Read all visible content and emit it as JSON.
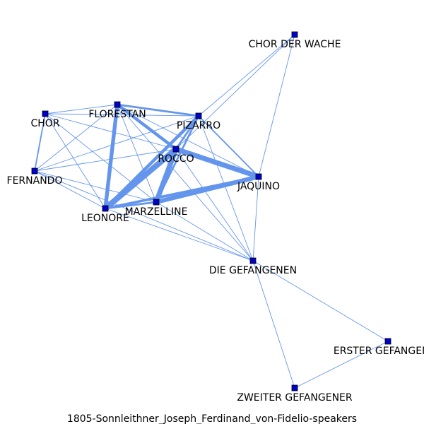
{
  "caption": "1805-Sonnleithner_Joseph_Ferdinand_von-Fidelio-speakers",
  "colors": {
    "edge": "#6495ED",
    "node_fill": "#0000CD",
    "node_stroke": "#000000",
    "label": "#000000"
  },
  "nodes": [
    {
      "id": "chor_der_wache",
      "label": "CHOR DER WACHE"
    },
    {
      "id": "florestan",
      "label": "FLORESTAN"
    },
    {
      "id": "chor",
      "label": "CHOR"
    },
    {
      "id": "pizarro",
      "label": "PIZARRO"
    },
    {
      "id": "rocco",
      "label": "ROCCO"
    },
    {
      "id": "fernando",
      "label": "FERNANDO"
    },
    {
      "id": "jaquino",
      "label": "JAQUINO"
    },
    {
      "id": "marzelline",
      "label": "MARZELLINE"
    },
    {
      "id": "leonore",
      "label": "LEONORE"
    },
    {
      "id": "die_gefangenen",
      "label": "DIE GEFANGENEN"
    },
    {
      "id": "erster_gefangener",
      "label": "ERSTER GEFANGENER"
    },
    {
      "id": "zweiter_gefangener",
      "label": "ZWEITER GEFANGENER"
    }
  ],
  "edges": [
    {
      "source": "chor_der_wache",
      "target": "pizarro",
      "weight": 1
    },
    {
      "source": "chor_der_wache",
      "target": "rocco",
      "weight": 1
    },
    {
      "source": "chor_der_wache",
      "target": "jaquino",
      "weight": 1
    },
    {
      "source": "chor",
      "target": "florestan",
      "weight": 1
    },
    {
      "source": "chor",
      "target": "pizarro",
      "weight": 1
    },
    {
      "source": "chor",
      "target": "fernando",
      "weight": 2
    },
    {
      "source": "chor",
      "target": "rocco",
      "weight": 1
    },
    {
      "source": "chor",
      "target": "leonore",
      "weight": 1
    },
    {
      "source": "chor",
      "target": "marzelline",
      "weight": 1
    },
    {
      "source": "florestan",
      "target": "pizarro",
      "weight": 3
    },
    {
      "source": "florestan",
      "target": "rocco",
      "weight": 5
    },
    {
      "source": "florestan",
      "target": "leonore",
      "weight": 6
    },
    {
      "source": "florestan",
      "target": "fernando",
      "weight": 1
    },
    {
      "source": "florestan",
      "target": "marzelline",
      "weight": 1
    },
    {
      "source": "florestan",
      "target": "jaquino",
      "weight": 1
    },
    {
      "source": "florestan",
      "target": "die_gefangenen",
      "weight": 1
    },
    {
      "source": "pizarro",
      "target": "rocco",
      "weight": 3
    },
    {
      "source": "pizarro",
      "target": "leonore",
      "weight": 5
    },
    {
      "source": "pizarro",
      "target": "marzelline",
      "weight": 3
    },
    {
      "source": "pizarro",
      "target": "jaquino",
      "weight": 2
    },
    {
      "source": "pizarro",
      "target": "fernando",
      "weight": 1
    },
    {
      "source": "pizarro",
      "target": "die_gefangenen",
      "weight": 1
    },
    {
      "source": "rocco",
      "target": "jaquino",
      "weight": 8
    },
    {
      "source": "rocco",
      "target": "leonore",
      "weight": 9
    },
    {
      "source": "rocco",
      "target": "marzelline",
      "weight": 8
    },
    {
      "source": "rocco",
      "target": "fernando",
      "weight": 1
    },
    {
      "source": "rocco",
      "target": "die_gefangenen",
      "weight": 1
    },
    {
      "source": "jaquino",
      "target": "marzelline",
      "weight": 7
    },
    {
      "source": "jaquino",
      "target": "leonore",
      "weight": 4
    },
    {
      "source": "jaquino",
      "target": "die_gefangenen",
      "weight": 1
    },
    {
      "source": "fernando",
      "target": "leonore",
      "weight": 1
    },
    {
      "source": "fernando",
      "target": "marzelline",
      "weight": 1
    },
    {
      "source": "fernando",
      "target": "die_gefangenen",
      "weight": 1
    },
    {
      "source": "leonore",
      "target": "marzelline",
      "weight": 3
    },
    {
      "source": "leonore",
      "target": "die_gefangenen",
      "weight": 1
    },
    {
      "source": "marzelline",
      "target": "die_gefangenen",
      "weight": 1
    },
    {
      "source": "die_gefangenen",
      "target": "erster_gefangener",
      "weight": 1
    },
    {
      "source": "die_gefangenen",
      "target": "zweiter_gefangener",
      "weight": 1
    },
    {
      "source": "erster_gefangener",
      "target": "zweiter_gefangener",
      "weight": 1
    }
  ]
}
